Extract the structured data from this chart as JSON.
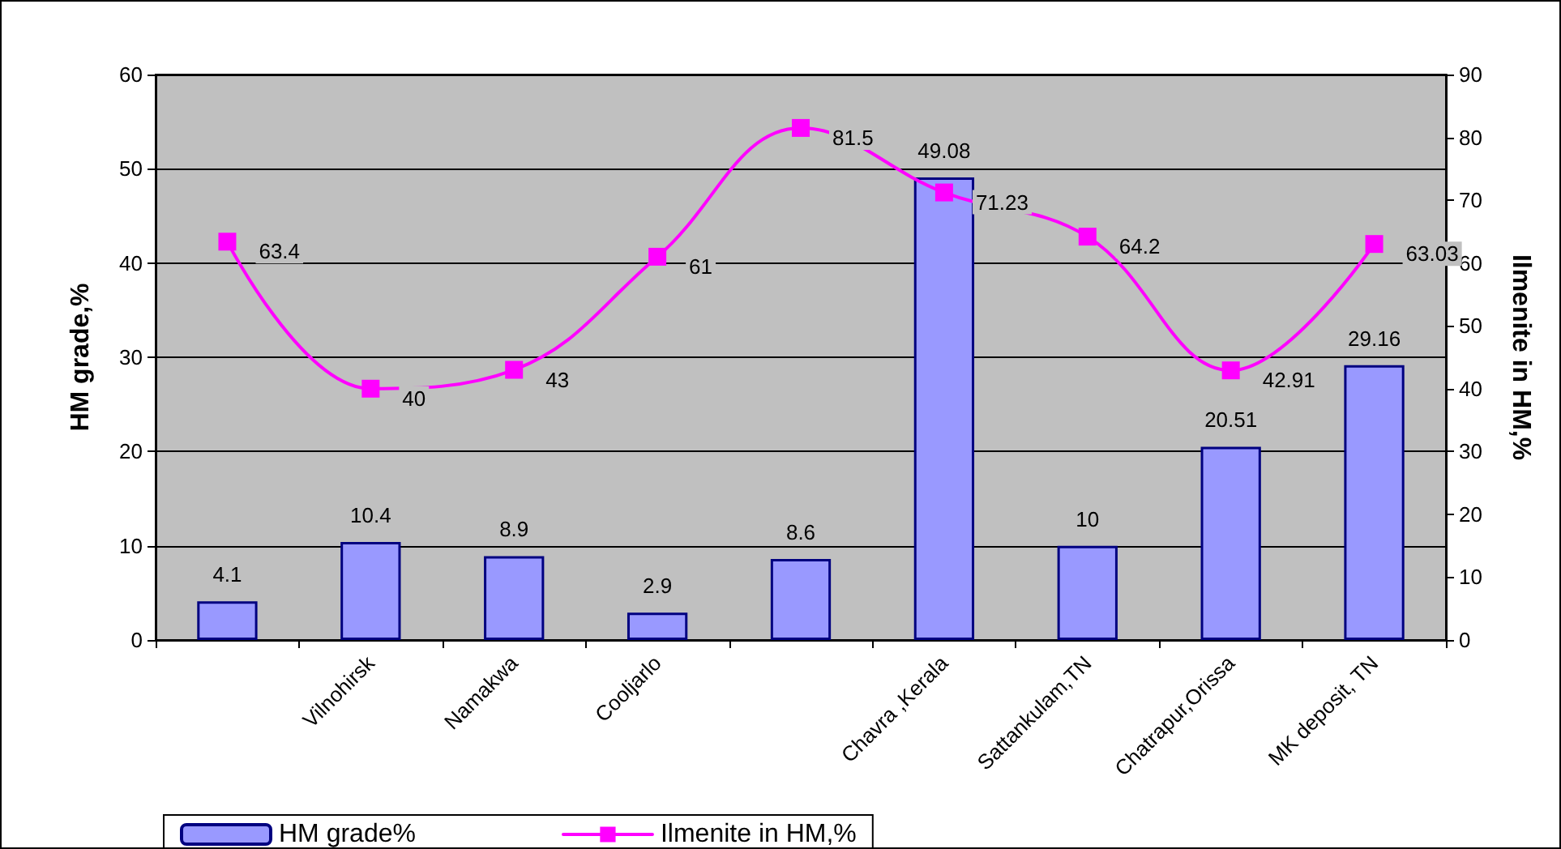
{
  "chart_data": {
    "type": "bar",
    "ylabel": "HM grade,%",
    "y2label": "Ilmenite in HM,%",
    "categories": [
      null,
      "Vilnohirsk",
      "Namakwa",
      "Cooljarlo",
      null,
      "Chavra ,Kerala",
      "Sattankulam,TN",
      "Chatrapur,Orissa",
      "MK deposit, TN"
    ],
    "series": [
      {
        "name": "HM grade%",
        "color": "#9999ff",
        "values": [
          4.1,
          10.4,
          8.9,
          2.9,
          8.6,
          49.08,
          10,
          20.51,
          29.16
        ]
      },
      {
        "name": "Ilmenite in HM,%",
        "type": "line",
        "axis": "y2",
        "color": "#ff00ff",
        "marker": "square",
        "values": [
          63.4,
          40,
          43,
          61,
          81.5,
          71.23,
          64.2,
          42.91,
          63.03
        ]
      }
    ],
    "ylim": [
      0,
      60
    ],
    "yticks": [
      0,
      10,
      20,
      30,
      40,
      50,
      60
    ],
    "y2lim": [
      0,
      90
    ],
    "y2ticks": [
      0,
      10,
      20,
      30,
      40,
      50,
      60,
      70,
      80,
      90
    ],
    "grid": "y",
    "legend": "bottom",
    "data_labels": true
  }
}
